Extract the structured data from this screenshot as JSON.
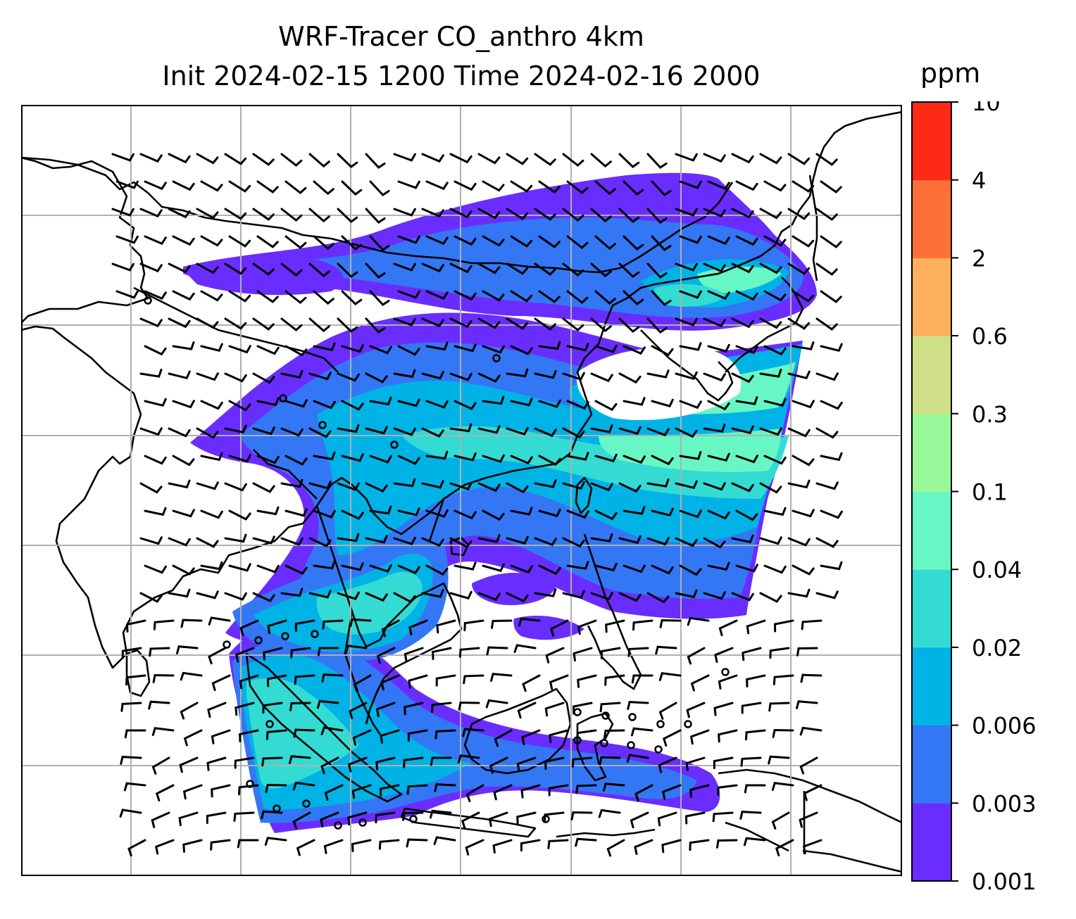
{
  "title": {
    "line1": "WRF-Tracer CO_anthro 4km",
    "line2": "Init 2024-02-15 1200 Time 2024-02-16 2000"
  },
  "colorbar": {
    "unit": "ppm",
    "levels": [
      "0.001",
      "0.003",
      "0.006",
      "0.02",
      "0.04",
      "0.1",
      "0.3",
      "0.6",
      "2",
      "4",
      "10"
    ],
    "colors": [
      "#6a2dff",
      "#3377f5",
      "#00b3e6",
      "#33dbd3",
      "#66f7c4",
      "#99f79a",
      "#cfdf87",
      "#fcb05e",
      "#ff7038",
      "#ff2a16"
    ]
  },
  "map": {
    "grid_color": "#b0b0b0",
    "coast_color": "#000000",
    "barb_color": "#000000"
  }
}
